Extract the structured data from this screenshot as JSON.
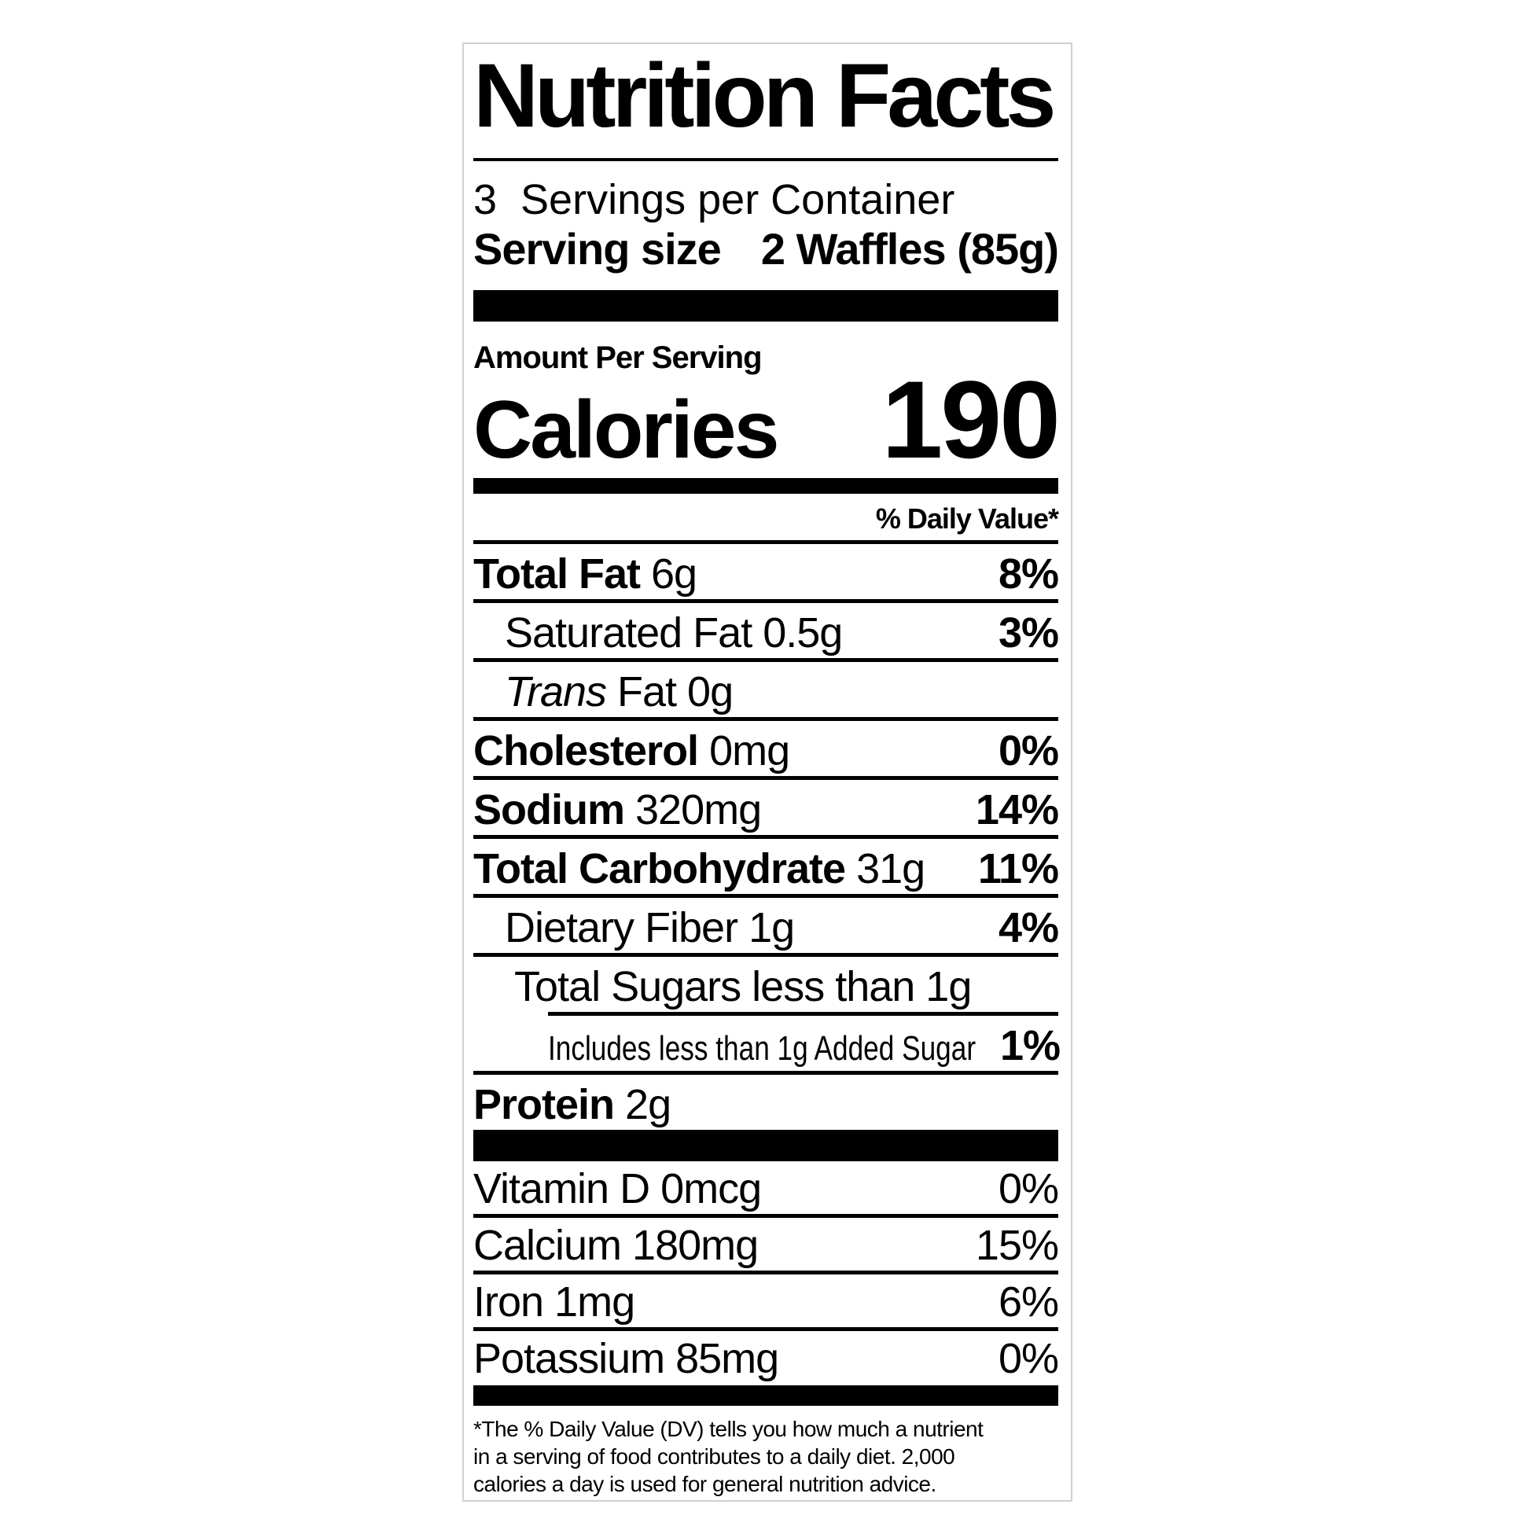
{
  "nutrition_label": {
    "title": "Nutrition Facts",
    "servings_per_container": "3  Servings per Container",
    "serving_size": {
      "label": "Serving size",
      "value": "2 Waffles (85g)"
    },
    "amount_per_serving": "Amount Per Serving",
    "calories": {
      "label": "Calories",
      "value": "190"
    },
    "daily_value_header": "% Daily Value*",
    "nutrient_rows": [
      {
        "bold": "Total Fat",
        "text": "6g",
        "percent": "8%",
        "indent": 0,
        "rule": "full"
      },
      {
        "text": "Saturated Fat 0.5g",
        "percent": "3%",
        "indent": 1,
        "rule": "full"
      },
      {
        "italic": "Trans",
        "text": " Fat 0g",
        "percent": "",
        "indent": 1,
        "rule": "full"
      },
      {
        "bold": "Cholesterol",
        "text": "0mg",
        "percent": "0%",
        "indent": 0,
        "rule": "full"
      },
      {
        "bold": "Sodium",
        "text": "320mg",
        "percent": "14%",
        "indent": 0,
        "rule": "full"
      },
      {
        "bold": "Total Carbohydrate",
        "text": "31g",
        "percent": "11%",
        "indent": 0,
        "rule": "full"
      },
      {
        "text": "Dietary Fiber 1g",
        "percent": "4%",
        "indent": 1,
        "rule": "full"
      },
      {
        "text": "Total Sugars less than 1g",
        "percent": "",
        "indent": 2,
        "rule": "partial"
      },
      {
        "text": "Includes less than 1g Added Sugar",
        "percent": "1%",
        "indent": 3,
        "condensed": true,
        "rule": "full"
      },
      {
        "bold": "Protein",
        "text": "2g",
        "percent": "",
        "indent": 0,
        "rule": "none"
      }
    ],
    "micronutrient_rows": [
      {
        "text": "Vitamin D 0mcg",
        "percent": "0%"
      },
      {
        "text": "Calcium 180mg",
        "percent": "15%"
      },
      {
        "text": "Iron 1mg",
        "percent": "6%"
      },
      {
        "text": "Potassium 85mg",
        "percent": "0%"
      }
    ],
    "footnote_lines": [
      "*The % Daily Value (DV) tells you how much a nutrient",
      "in a serving of food contributes to a daily diet. 2,000",
      "calories a day is used for general nutrition advice."
    ],
    "colors": {
      "ink": "#000000",
      "paper": "#ffffff",
      "border": "#d0d0d0"
    }
  }
}
